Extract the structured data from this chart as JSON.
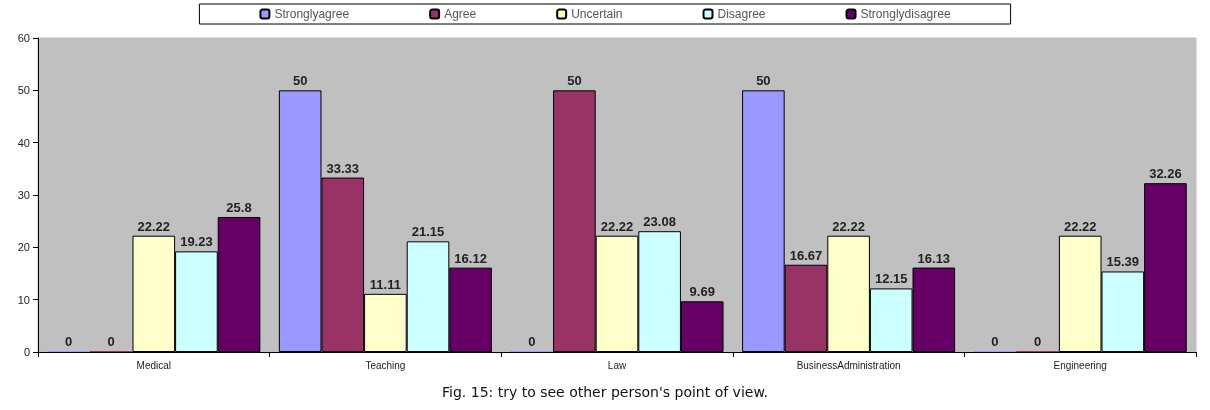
{
  "chart_data": {
    "type": "bar",
    "title": "Fig. 15: try to see other person's point of view.",
    "categories": [
      "Medical",
      "Teaching",
      "Law",
      "BusinessAdministration",
      "Engineering"
    ],
    "series": [
      {
        "name": "Stronglyagree",
        "color": "#9999ff",
        "values": [
          0,
          50,
          0,
          50,
          0
        ]
      },
      {
        "name": "Agree",
        "color": "#993366",
        "values": [
          0,
          33.33,
          50,
          16.67,
          0
        ]
      },
      {
        "name": "Uncertain",
        "color": "#ffffcc",
        "values": [
          22.22,
          11.11,
          22.22,
          22.22,
          22.22
        ]
      },
      {
        "name": "Disagree",
        "color": "#ccffff",
        "values": [
          19.23,
          21.15,
          23.08,
          12.15,
          15.39
        ]
      },
      {
        "name": "Stronglydisagree",
        "color": "#660066",
        "values": [
          25.8,
          16.12,
          9.69,
          16.13,
          32.26
        ]
      }
    ],
    "ylim": [
      0,
      60
    ],
    "yticks": [
      0,
      10,
      20,
      30,
      40,
      50,
      60
    ],
    "grid": false,
    "legend": "top",
    "data_labels": true
  }
}
